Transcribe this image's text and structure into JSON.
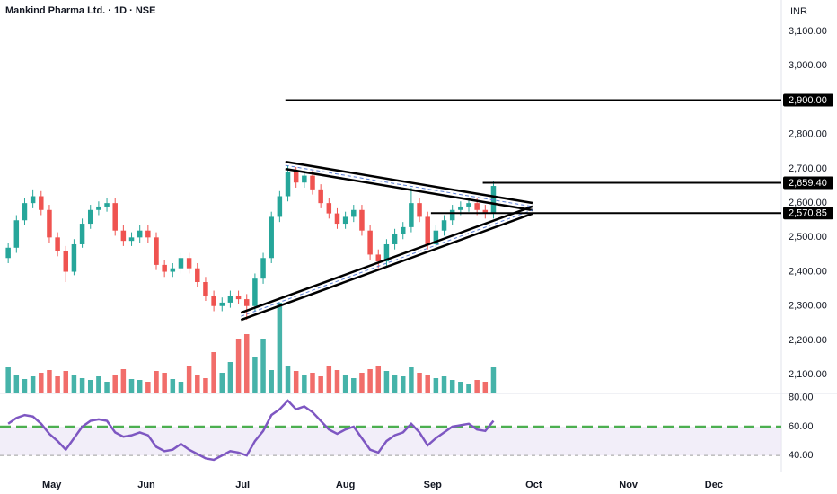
{
  "chart_data": {
    "type": "candlestick",
    "title": "Mankind Pharma Ltd. · 1D · NSE",
    "currency": "INR",
    "up_color": "#26a69a",
    "down_color": "#ef5350",
    "xlim": [
      -1,
      94
    ],
    "xticks": [
      {
        "value": 5.3,
        "label": "May"
      },
      {
        "value": 16.8,
        "label": "Jun"
      },
      {
        "value": 28.5,
        "label": "Jul"
      },
      {
        "value": 41.0,
        "label": "Aug"
      },
      {
        "value": 51.6,
        "label": "Sep"
      },
      {
        "value": 63.9,
        "label": "Oct"
      },
      {
        "value": 75.4,
        "label": "Nov"
      },
      {
        "value": 85.8,
        "label": "Dec"
      }
    ],
    "ylim": [
      2048,
      3192
    ],
    "yticks": [
      {
        "value": 2100,
        "label": "2,100.00"
      },
      {
        "value": 2200,
        "label": "2,200.00"
      },
      {
        "value": 2300,
        "label": "2,300.00"
      },
      {
        "value": 2400,
        "label": "2,400.00"
      },
      {
        "value": 2500,
        "label": "2,500.00"
      },
      {
        "value": 2600,
        "label": "2,600.00"
      },
      {
        "value": 2700,
        "label": "2,700.00"
      },
      {
        "value": 2800,
        "label": "2,800.00"
      },
      {
        "value": 3000,
        "label": "3,000.00"
      },
      {
        "value": 3100,
        "label": "3,100.00"
      }
    ],
    "open": [
      2440,
      2470,
      2550,
      2600,
      2620,
      2580,
      2500,
      2460,
      2400,
      2480,
      2540,
      2580,
      2590,
      2600,
      2520,
      2490,
      2500,
      2520,
      2500,
      2420,
      2400,
      2410,
      2440,
      2410,
      2370,
      2330,
      2300,
      2310,
      2330,
      2320,
      2300,
      2380,
      2440,
      2560,
      2620,
      2690,
      2660,
      2680,
      2640,
      2600,
      2570,
      2540,
      2560,
      2580,
      2520,
      2450,
      2430,
      2480,
      2510,
      2530,
      2600,
      2560,
      2480,
      2520,
      2550,
      2580,
      2590,
      2600,
      2580,
      2570
    ],
    "high": [
      2485,
      2565,
      2615,
      2640,
      2635,
      2595,
      2515,
      2475,
      2495,
      2555,
      2595,
      2605,
      2615,
      2615,
      2535,
      2515,
      2535,
      2535,
      2515,
      2435,
      2425,
      2455,
      2455,
      2425,
      2385,
      2345,
      2325,
      2345,
      2345,
      2335,
      2395,
      2455,
      2575,
      2635,
      2710,
      2705,
      2695,
      2695,
      2655,
      2615,
      2585,
      2575,
      2595,
      2595,
      2535,
      2465,
      2495,
      2525,
      2545,
      2645,
      2615,
      2575,
      2535,
      2565,
      2595,
      2605,
      2615,
      2615,
      2595,
      2665
    ],
    "low": [
      2425,
      2455,
      2535,
      2585,
      2565,
      2485,
      2445,
      2370,
      2390,
      2470,
      2525,
      2565,
      2575,
      2505,
      2475,
      2475,
      2485,
      2485,
      2405,
      2385,
      2385,
      2395,
      2395,
      2355,
      2315,
      2285,
      2285,
      2295,
      2305,
      2260,
      2285,
      2365,
      2425,
      2545,
      2605,
      2645,
      2645,
      2625,
      2585,
      2555,
      2525,
      2525,
      2545,
      2505,
      2435,
      2410,
      2415,
      2465,
      2495,
      2515,
      2545,
      2465,
      2465,
      2505,
      2535,
      2565,
      2575,
      2565,
      2555,
      2555
    ],
    "close": [
      2470,
      2550,
      2600,
      2620,
      2580,
      2500,
      2460,
      2400,
      2480,
      2540,
      2580,
      2590,
      2600,
      2520,
      2490,
      2500,
      2520,
      2500,
      2420,
      2400,
      2410,
      2440,
      2410,
      2370,
      2330,
      2300,
      2310,
      2330,
      2320,
      2300,
      2380,
      2440,
      2560,
      2620,
      2690,
      2660,
      2680,
      2640,
      2600,
      2570,
      2540,
      2560,
      2580,
      2520,
      2450,
      2430,
      2480,
      2510,
      2530,
      2600,
      2560,
      2480,
      2520,
      2550,
      2580,
      2590,
      2600,
      2580,
      2570,
      2650
    ],
    "volume": [
      28,
      20,
      15,
      18,
      22,
      25,
      18,
      24,
      20,
      16,
      14,
      18,
      12,
      20,
      26,
      15,
      14,
      12,
      24,
      22,
      15,
      12,
      30,
      20,
      16,
      45,
      22,
      34,
      60,
      65,
      40,
      60,
      25,
      100,
      30,
      24,
      20,
      22,
      18,
      30,
      25,
      20,
      16,
      22,
      26,
      30,
      24,
      20,
      18,
      28,
      22,
      20,
      16,
      18,
      14,
      12,
      10,
      14,
      12,
      28
    ],
    "levels": [
      {
        "value": 2900,
        "label": "2,900.00",
        "from": 33.7
      },
      {
        "value": 2659.4,
        "label": "2,659.40",
        "from": 57.7
      },
      {
        "value": 2570.85,
        "label": "2,570.85",
        "from": 51.4
      }
    ],
    "trendlines": [
      {
        "x": [
          33.7,
          63.75
        ],
        "y": [
          2710,
          2590
        ]
      },
      {
        "x": [
          28.3,
          63.75
        ],
        "y": [
          2270,
          2580
        ]
      }
    ],
    "rsi": {
      "type": "line",
      "color": "#7e57c2",
      "values": [
        62,
        66,
        68,
        67,
        62,
        55,
        50,
        44,
        52,
        60,
        64,
        65,
        64,
        56,
        53,
        54,
        56,
        54,
        46,
        43,
        44,
        48,
        44,
        41,
        38,
        37,
        40,
        43,
        42,
        40,
        50,
        57,
        68,
        72,
        78,
        72,
        74,
        70,
        64,
        58,
        55,
        58,
        60,
        52,
        44,
        42,
        50,
        54,
        56,
        62,
        56,
        47,
        52,
        56,
        60,
        61,
        62,
        58,
        57,
        64
      ],
      "ylim": [
        32,
        83
      ],
      "yticks": [
        {
          "value": 80,
          "label": "80.00"
        },
        {
          "value": 60,
          "label": "60.00"
        },
        {
          "value": 40,
          "label": "40.00"
        }
      ],
      "band": [
        40,
        60
      ]
    }
  }
}
